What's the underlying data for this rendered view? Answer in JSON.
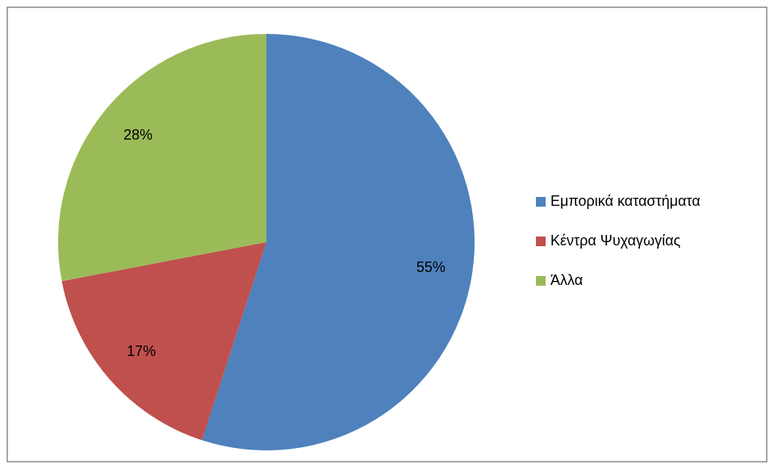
{
  "chart_data": {
    "type": "pie",
    "categories": [
      "Εμπορικά καταστήματα",
      "Κέντρα Ψυχαγωγίας",
      "Άλλα"
    ],
    "values": [
      55,
      17,
      28
    ],
    "value_labels": [
      "55%",
      "17%",
      "28%"
    ],
    "colors": [
      "#4f81bd",
      "#c0504d",
      "#9bbb59"
    ],
    "legend": "right"
  }
}
